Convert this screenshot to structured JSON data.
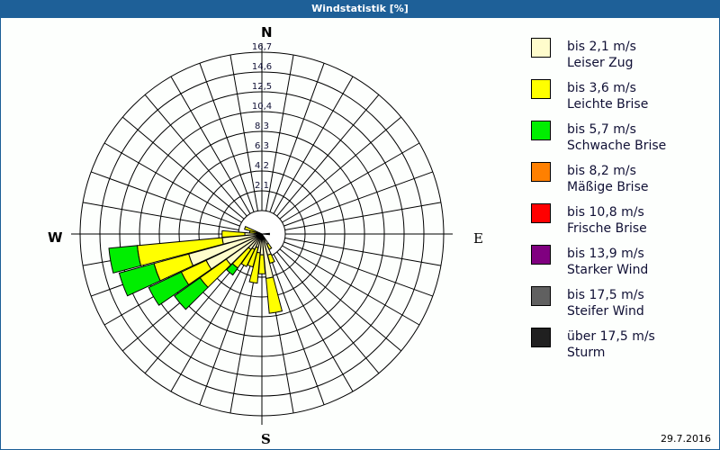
{
  "window": {
    "title": "Windstatistik [%]"
  },
  "compass": {
    "n": "N",
    "e": "E",
    "s": "S",
    "w": "W"
  },
  "date": "29.7.2016",
  "legend": [
    {
      "range": "bis 2,1 m/s",
      "name": "Leiser Zug",
      "color": "#fffccc"
    },
    {
      "range": "bis 3,6 m/s",
      "name": "Leichte Brise",
      "color": "#ffff00"
    },
    {
      "range": "bis 5,7 m/s",
      "name": "Schwache Brise",
      "color": "#00ee00"
    },
    {
      "range": "bis 8,2 m/s",
      "name": "Mäßige Brise",
      "color": "#ff8000"
    },
    {
      "range": "bis 10,8 m/s",
      "name": "Frische Brise",
      "color": "#ff0000"
    },
    {
      "range": "bis 13,9 m/s",
      "name": "Starker Wind",
      "color": "#800080"
    },
    {
      "range": "bis 17,5 m/s",
      "name": "Steifer Wind",
      "color": "#606060"
    },
    {
      "range": "über 17,5 m/s",
      "name": "Sturm",
      "color": "#202020"
    }
  ],
  "chart_data": {
    "type": "wind-rose",
    "title": "Windstatistik [%]",
    "rings": [
      "2,1",
      "4,2",
      "6,3",
      "8,3",
      "10,4",
      "12,5",
      "14,6",
      "16,7"
    ],
    "rmax": 16.7,
    "sector_width_deg": 10,
    "series_names": [
      "Leiser Zug",
      "Leichte Brise",
      "Schwache Brise",
      "Mäßige Brise",
      "Frische Brise",
      "Starker Wind",
      "Steifer Wind",
      "Sturm"
    ],
    "sectors": [
      {
        "dir": 90,
        "values": [
          0,
          0,
          0,
          0,
          0,
          0,
          0,
          0.8
        ]
      },
      {
        "dir": 150,
        "values": [
          1.2,
          0.6,
          0,
          0,
          0,
          0,
          0,
          0
        ]
      },
      {
        "dir": 160,
        "values": [
          2.3,
          0.9,
          0,
          0,
          0,
          0,
          0,
          0
        ]
      },
      {
        "dir": 170,
        "values": [
          4.7,
          3.7,
          0,
          0,
          0,
          0,
          0,
          0
        ]
      },
      {
        "dir": 180,
        "values": [
          2.2,
          2.0,
          0,
          0,
          0,
          0,
          0,
          0
        ]
      },
      {
        "dir": 190,
        "values": [
          2.0,
          3.2,
          0,
          0,
          0,
          0,
          0,
          0
        ]
      },
      {
        "dir": 200,
        "values": [
          1.5,
          2.1,
          0,
          0,
          0,
          0,
          0,
          0
        ]
      },
      {
        "dir": 210,
        "values": [
          1.8,
          2.0,
          0,
          0,
          0,
          0,
          0,
          0
        ]
      },
      {
        "dir": 220,
        "values": [
          2.0,
          2.4,
          0.9,
          0,
          0,
          0,
          0,
          0
        ]
      },
      {
        "dir": 230,
        "values": [
          4.6,
          3.4,
          3.3,
          0,
          0,
          0,
          0,
          0
        ]
      },
      {
        "dir": 240,
        "values": [
          6.5,
          2.9,
          3.8,
          0,
          0,
          0,
          0,
          0
        ]
      },
      {
        "dir": 250,
        "values": [
          8.0,
          3.8,
          3.8,
          0,
          0,
          0,
          0,
          0
        ]
      },
      {
        "dir": 260,
        "values": [
          4.2,
          9.0,
          3.0,
          0,
          0,
          0,
          0,
          0
        ]
      },
      {
        "dir": 270,
        "values": [
          1.8,
          2.4,
          0,
          0,
          0,
          0,
          0,
          0
        ]
      },
      {
        "dir": 280,
        "values": [
          0.5,
          0.8,
          0,
          0,
          0,
          0,
          0,
          0
        ]
      },
      {
        "dir": 290,
        "values": [
          0.3,
          1.6,
          0,
          0,
          0,
          0,
          0,
          0
        ]
      }
    ]
  }
}
